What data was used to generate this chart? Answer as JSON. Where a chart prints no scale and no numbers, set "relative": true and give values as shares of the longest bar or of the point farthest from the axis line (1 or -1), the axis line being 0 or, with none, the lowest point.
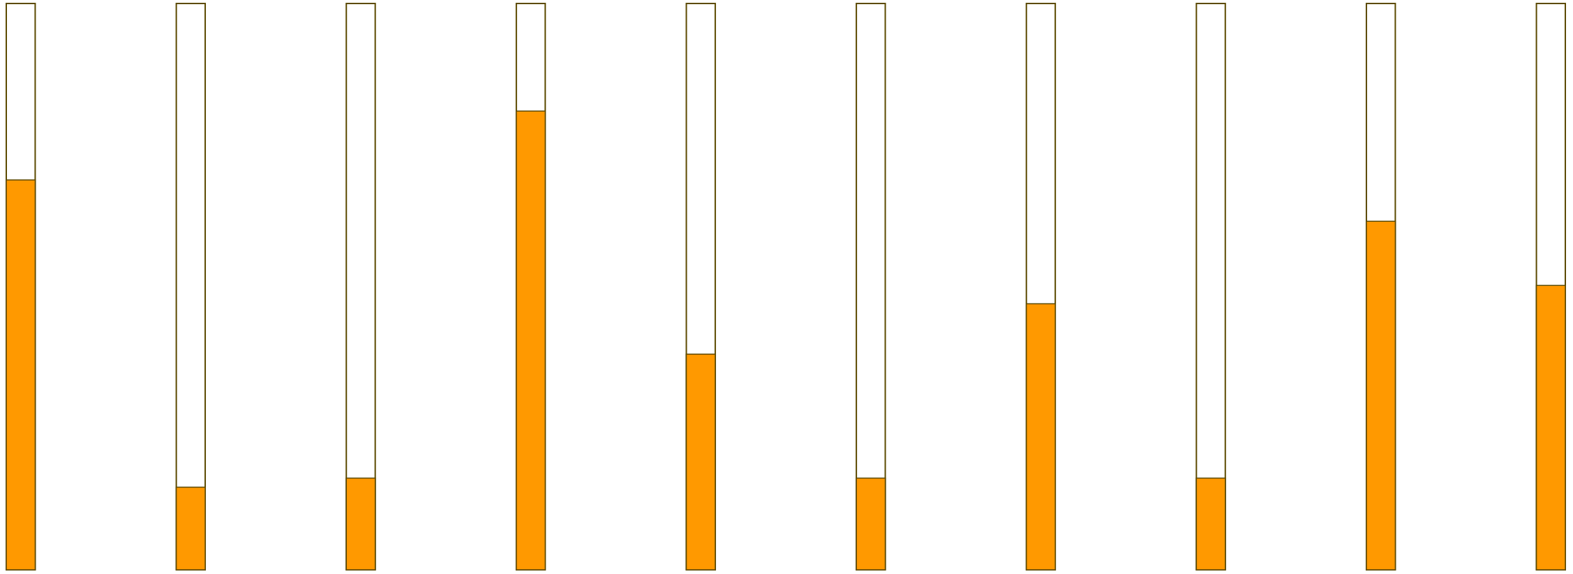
{
  "chart_data": {
    "type": "bar",
    "relative": true,
    "categories": [
      null,
      null,
      null,
      null,
      null,
      null,
      null,
      null,
      null,
      null
    ],
    "series": [
      {
        "color": "#ff9900",
        "values": [
          0.85,
          0.18,
          0.2,
          1,
          0.47,
          0.2,
          0.58,
          0.2,
          0.76,
          0.62
        ]
      }
    ]
  }
}
